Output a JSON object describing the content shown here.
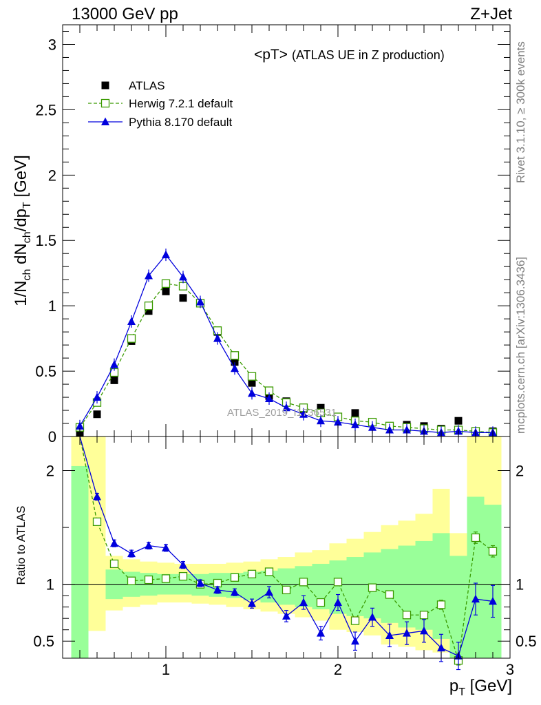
{
  "header": {
    "left": "13000 GeV pp",
    "right": "Z+Jet"
  },
  "side_labels": {
    "rivet": "Rivet 3.1.10, ≥ 300k events",
    "mcplots": "mcplots.cern.ch [arXiv:1306.3436]"
  },
  "watermark": "ATLAS_2019_I1736531",
  "chart_data": [
    {
      "type": "scatter",
      "title": "<pT>",
      "subtitle": "(ATLAS UE in Z production)",
      "ylabel": "1/N_ch dN_ch/dp_T [GeV]",
      "xlim": [
        0.4,
        3.0
      ],
      "ylim": [
        0,
        3.15
      ],
      "x_ticks": [
        1,
        2,
        3
      ],
      "y_ticks": [
        0,
        0.5,
        1,
        1.5,
        2,
        2.5,
        3
      ],
      "y_tick_labels": [
        "0",
        "0.5",
        "1",
        "1.5",
        "2",
        "2.5",
        "3"
      ],
      "legend_position": "top-left",
      "x": [
        0.5,
        0.6,
        0.7,
        0.8,
        0.9,
        1.0,
        1.1,
        1.2,
        1.3,
        1.4,
        1.5,
        1.6,
        1.7,
        1.8,
        1.9,
        2.0,
        2.1,
        2.2,
        2.3,
        2.4,
        2.5,
        2.6,
        2.7,
        2.8,
        2.9
      ],
      "series": [
        {
          "name": "ATLAS",
          "color": "#000000",
          "marker": "filled-square",
          "values": [
            0.02,
            0.17,
            0.43,
            0.73,
            0.96,
            1.11,
            1.06,
            1.02,
            0.8,
            0.57,
            0.41,
            0.31,
            0.27,
            0.21,
            0.22,
            0.15,
            0.18,
            0.11,
            0.08,
            0.09,
            0.08,
            0.06,
            0.12,
            0.04,
            0.04
          ]
        },
        {
          "name": "Herwig 7.2.1 default",
          "color": "#3a9a00",
          "marker": "open-square",
          "line": "dashed",
          "values": [
            0.07,
            0.26,
            0.49,
            0.75,
            1.0,
            1.17,
            1.15,
            1.02,
            0.81,
            0.62,
            0.46,
            0.35,
            0.26,
            0.22,
            0.18,
            0.15,
            0.12,
            0.11,
            0.08,
            0.07,
            0.06,
            0.05,
            0.05,
            0.04,
            0.03
          ]
        },
        {
          "name": "Pythia 8.170 default",
          "color": "#0000dd",
          "marker": "filled-triangle",
          "line": "solid",
          "values": [
            0.08,
            0.3,
            0.55,
            0.88,
            1.23,
            1.39,
            1.22,
            1.03,
            0.75,
            0.52,
            0.33,
            0.29,
            0.22,
            0.17,
            0.12,
            0.11,
            0.09,
            0.07,
            0.05,
            0.05,
            0.04,
            0.03,
            0.04,
            0.03,
            0.03
          ]
        }
      ]
    },
    {
      "type": "line",
      "ylabel": "Ratio to ATLAS",
      "xlabel": "p_T [GeV]",
      "xlim": [
        0.4,
        3.0
      ],
      "ylim": [
        0.35,
        2.3
      ],
      "x_ticks": [
        1,
        2,
        3
      ],
      "x_tick_labels": [
        "1",
        "2",
        "3"
      ],
      "y_ticks": [
        0.5,
        1,
        2
      ],
      "y_tick_labels": [
        "0.5",
        "1",
        "2"
      ],
      "reference_line": 1,
      "band_edges": [
        0.45,
        0.55,
        0.65,
        0.75,
        0.85,
        0.95,
        1.05,
        1.15,
        1.25,
        1.35,
        1.45,
        1.55,
        1.65,
        1.75,
        1.85,
        1.95,
        2.05,
        2.15,
        2.25,
        2.35,
        2.45,
        2.55,
        2.65,
        2.75,
        2.85,
        2.95
      ],
      "bands": {
        "outer_color": "#ffff99",
        "inner_color": "#99ff99",
        "outer_low": [
          0.0,
          0.59,
          0.77,
          0.8,
          0.82,
          0.84,
          0.84,
          0.83,
          0.82,
          0.8,
          0.78,
          0.76,
          0.74,
          0.71,
          0.68,
          0.6,
          0.58,
          0.55,
          0.47,
          0.45,
          0.42,
          0.4,
          0.0,
          0.0,
          0.0
        ],
        "outer_high": [
          2.5,
          2.5,
          1.25,
          1.22,
          1.2,
          1.19,
          1.18,
          1.18,
          1.18,
          1.19,
          1.2,
          1.22,
          1.24,
          1.28,
          1.3,
          1.36,
          1.4,
          1.46,
          1.52,
          1.56,
          1.62,
          1.84,
          1.45,
          2.5,
          2.5
        ],
        "inner_low": [
          0.0,
          0.0,
          0.87,
          0.89,
          0.9,
          0.91,
          0.91,
          0.9,
          0.89,
          0.88,
          0.86,
          0.84,
          0.82,
          0.8,
          0.78,
          0.74,
          0.72,
          0.7,
          0.66,
          0.62,
          0.6,
          0.52,
          0.0,
          0.0,
          0.0
        ],
        "inner_high": [
          2.04,
          0.0,
          1.13,
          1.11,
          1.1,
          1.09,
          1.09,
          1.09,
          1.1,
          1.1,
          1.11,
          1.12,
          1.14,
          1.16,
          1.18,
          1.21,
          1.24,
          1.28,
          1.31,
          1.34,
          1.38,
          1.45,
          1.25,
          1.77,
          1.7
        ]
      },
      "series": [
        {
          "name": "Herwig 7.2.1 default",
          "color": "#3a9a00",
          "marker": "open-square",
          "line": "dashed",
          "x": [
            0.6,
            0.7,
            0.8,
            0.9,
            1.0,
            1.1,
            1.2,
            1.3,
            1.4,
            1.5,
            1.6,
            1.7,
            1.8,
            1.9,
            2.0,
            2.1,
            2.2,
            2.3,
            2.4,
            2.5,
            2.6,
            2.7,
            2.8,
            2.9
          ],
          "values": [
            1.55,
            1.18,
            1.03,
            1.04,
            1.05,
            1.07,
            1.0,
            1.01,
            1.06,
            1.09,
            1.11,
            0.95,
            1.02,
            0.84,
            1.02,
            0.68,
            0.97,
            0.91,
            0.73,
            0.73,
            0.82,
            0.33,
            1.41,
            1.29
          ],
          "errors": [
            0.02,
            0.02,
            0.01,
            0.01,
            0.01,
            0.01,
            0.01,
            0.01,
            0.02,
            0.02,
            0.02,
            0.02,
            0.02,
            0.02,
            0.02,
            0.02,
            0.02,
            0.03,
            0.03,
            0.03,
            0.04,
            0.04,
            0.05,
            0.05
          ]
        },
        {
          "name": "Pythia 8.170 default",
          "color": "#0000dd",
          "marker": "filled-triangle",
          "line": "solid",
          "x": [
            0.6,
            0.7,
            0.8,
            0.9,
            1.0,
            1.1,
            1.2,
            1.3,
            1.4,
            1.5,
            1.6,
            1.7,
            1.8,
            1.9,
            2.0,
            2.1,
            2.2,
            2.3,
            2.4,
            2.5,
            2.6,
            2.7,
            2.8,
            2.9
          ],
          "values": [
            1.77,
            1.36,
            1.27,
            1.34,
            1.32,
            1.17,
            1.01,
            0.95,
            0.93,
            0.83,
            0.93,
            0.72,
            0.84,
            0.57,
            0.84,
            0.5,
            0.71,
            0.55,
            0.57,
            0.59,
            0.44,
            0.37,
            0.87,
            0.85
          ],
          "errors": [
            0.03,
            0.03,
            0.03,
            0.03,
            0.03,
            0.03,
            0.03,
            0.03,
            0.03,
            0.04,
            0.05,
            0.05,
            0.06,
            0.06,
            0.07,
            0.08,
            0.08,
            0.1,
            0.1,
            0.1,
            0.12,
            0.12,
            0.14,
            0.14
          ]
        }
      ]
    }
  ]
}
